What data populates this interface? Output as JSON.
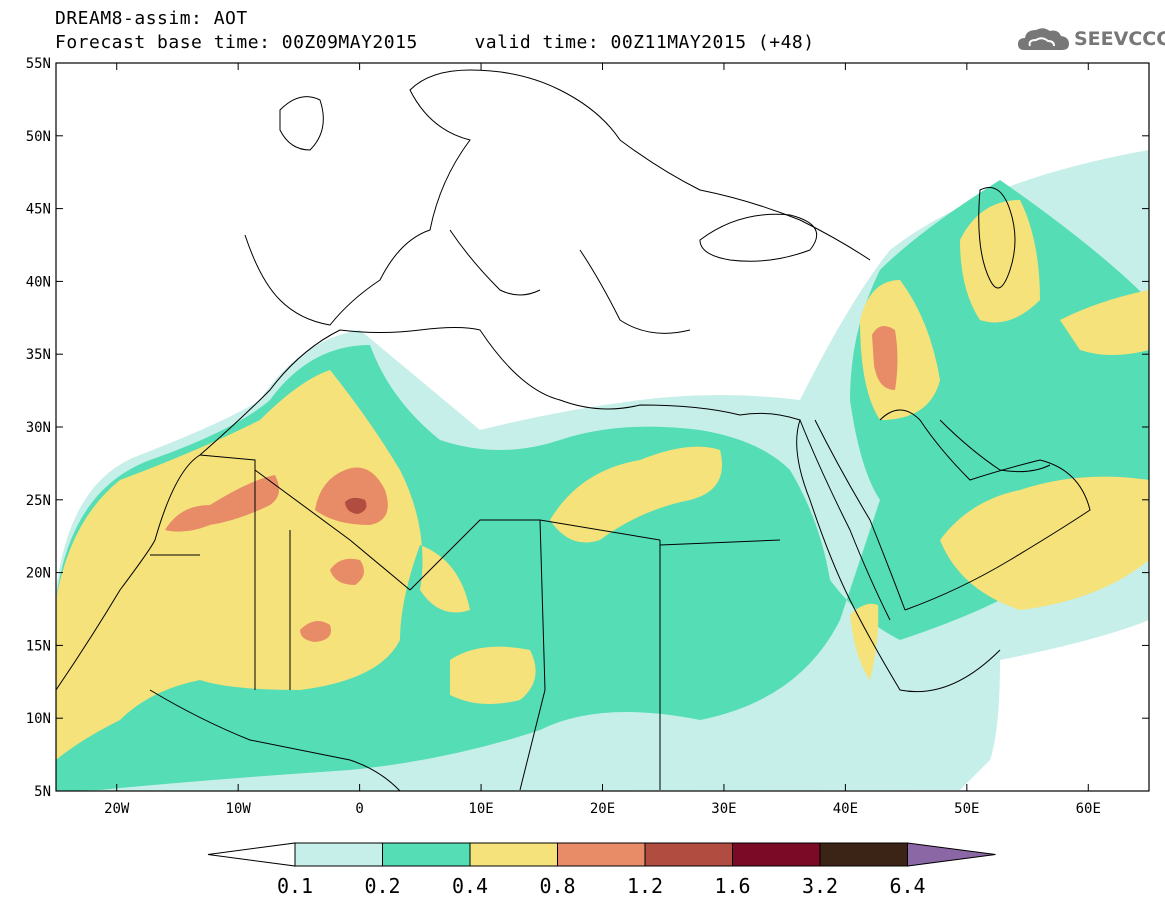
{
  "header": {
    "line1": "DREAM8-assim: AOT",
    "line2": "Forecast base time: 00Z09MAY2015     valid time: 00Z11MAY2015 (+48)",
    "logo_text": "SEEVCCC"
  },
  "map": {
    "lon_range": [
      -25,
      65
    ],
    "lat_range": [
      5,
      55
    ],
    "lat_ticks": [
      "5N",
      "10N",
      "15N",
      "20N",
      "25N",
      "30N",
      "35N",
      "40N",
      "45N",
      "50N",
      "55N"
    ],
    "lon_ticks": [
      "20W",
      "10W",
      "0",
      "10E",
      "20E",
      "30E",
      "40E",
      "50E",
      "60E"
    ]
  },
  "colorbar": {
    "labels": [
      "0.1",
      "0.2",
      "0.4",
      "0.8",
      "1.2",
      "1.6",
      "3.2",
      "6.4"
    ],
    "colors": [
      "#c6efe9",
      "#55ddb5",
      "#f5e27a",
      "#e88c68",
      "#b14c40",
      "#7a0a25",
      "#3b2415",
      "#8c67a5"
    ],
    "underflow_color": "#ffffff"
  }
}
